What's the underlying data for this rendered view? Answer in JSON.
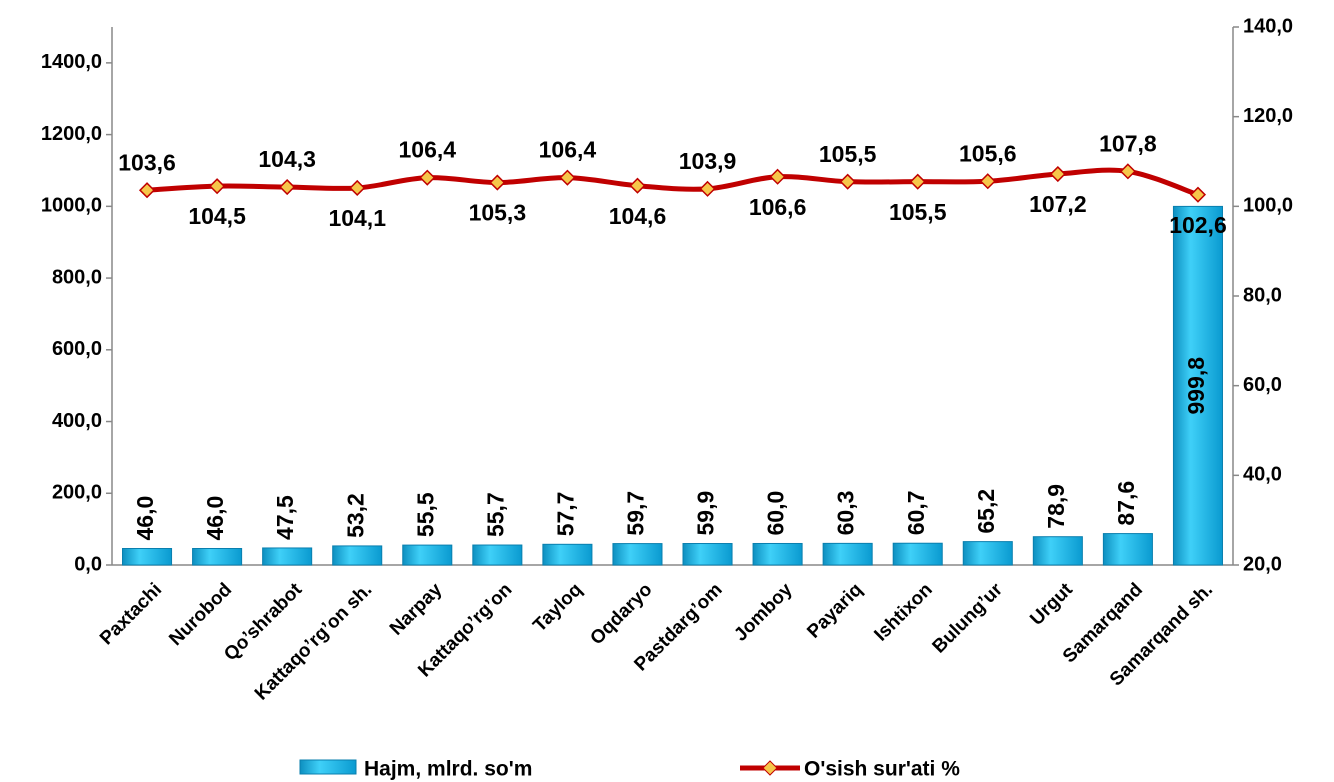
{
  "chart_data": {
    "type": "bar",
    "categories": [
      "Paxtachi",
      "Nurobod",
      "Qo’shrabot",
      "Kattaqo’rg’on sh.",
      "Narpay",
      "Kattaqo’rg’on",
      "Tayloq",
      "Oqdaryo",
      "Pastdarg’om",
      "Jomboy",
      "Payariq",
      "Ishtixon",
      "Bulung’ur",
      "Urgut",
      "Samarqand",
      "Samarqand sh."
    ],
    "series": [
      {
        "name": "Hajm, mlrd. so'm",
        "type": "bar",
        "color": "#1ab4e6",
        "values": [
          46.0,
          46.0,
          47.5,
          53.2,
          55.5,
          55.7,
          57.7,
          59.7,
          59.9,
          60.0,
          60.3,
          60.7,
          65.2,
          78.9,
          87.6,
          999.8
        ],
        "value_labels": [
          "46,0",
          "46,0",
          "47,5",
          "53,2",
          "55,5",
          "55,7",
          "57,7",
          "59,7",
          "59,9",
          "60,0",
          "60,3",
          "60,7",
          "65,2",
          "78,9",
          "87,6",
          "999,8"
        ]
      },
      {
        "name": "O'sish sur'ati %",
        "type": "line",
        "axis": "y2",
        "color": "#c00000",
        "values": [
          103.6,
          104.5,
          104.3,
          104.1,
          106.4,
          105.3,
          106.4,
          104.6,
          103.9,
          106.6,
          105.5,
          105.5,
          105.6,
          107.2,
          107.8,
          102.6
        ],
        "value_labels": [
          "103,6",
          "104,5",
          "104,3",
          "104,1",
          "106,4",
          "105,3",
          "106,4",
          "104,6",
          "103,9",
          "106,6",
          "105,5",
          "105,5",
          "105,6",
          "107,2",
          "107,8",
          "102,6"
        ]
      }
    ],
    "ylim": [
      0,
      1500
    ],
    "yticks": [
      {
        "value": 0,
        "label": "0,0"
      },
      {
        "value": 200,
        "label": "200,0"
      },
      {
        "value": 400,
        "label": "400,0"
      },
      {
        "value": 600,
        "label": "600,0"
      },
      {
        "value": 800,
        "label": "800,0"
      },
      {
        "value": 1000,
        "label": "1000,0"
      },
      {
        "value": 1200,
        "label": "1200,0"
      },
      {
        "value": 1400,
        "label": "1400,0"
      }
    ],
    "y2lim": [
      20,
      140
    ],
    "y2ticks": [
      {
        "value": 20,
        "label": "20,0"
      },
      {
        "value": 40,
        "label": "40,0"
      },
      {
        "value": 60,
        "label": "60,0"
      },
      {
        "value": 80,
        "label": "80,0"
      },
      {
        "value": 100,
        "label": "100,0"
      },
      {
        "value": 120,
        "label": "120,0"
      },
      {
        "value": 140,
        "label": "140,0"
      }
    ],
    "grid": false,
    "legend": "bottom"
  }
}
